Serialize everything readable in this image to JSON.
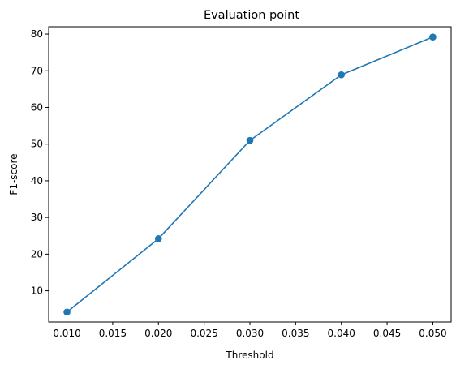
{
  "chart_data": {
    "type": "line",
    "title": "Evaluation point",
    "xlabel": "Threshold",
    "ylabel": "F1-score",
    "x": [
      0.01,
      0.02,
      0.03,
      0.04,
      0.05
    ],
    "series": [
      {
        "values": [
          4.2,
          24.2,
          51.0,
          68.9,
          79.2
        ],
        "color": "#1f77b4"
      }
    ],
    "xlim": [
      0.008,
      0.052
    ],
    "ylim": [
      1.5,
      82.0
    ],
    "xticks": [
      0.01,
      0.015,
      0.02,
      0.025,
      0.03,
      0.035,
      0.04,
      0.045,
      0.05
    ],
    "xtick_labels": [
      "0.010",
      "0.015",
      "0.020",
      "0.025",
      "0.030",
      "0.035",
      "0.040",
      "0.045",
      "0.050"
    ],
    "yticks": [
      10,
      20,
      30,
      40,
      50,
      60,
      70,
      80
    ],
    "ytick_labels": [
      "10",
      "20",
      "30",
      "40",
      "50",
      "60",
      "70",
      "80"
    ],
    "grid": false,
    "markers": true
  }
}
